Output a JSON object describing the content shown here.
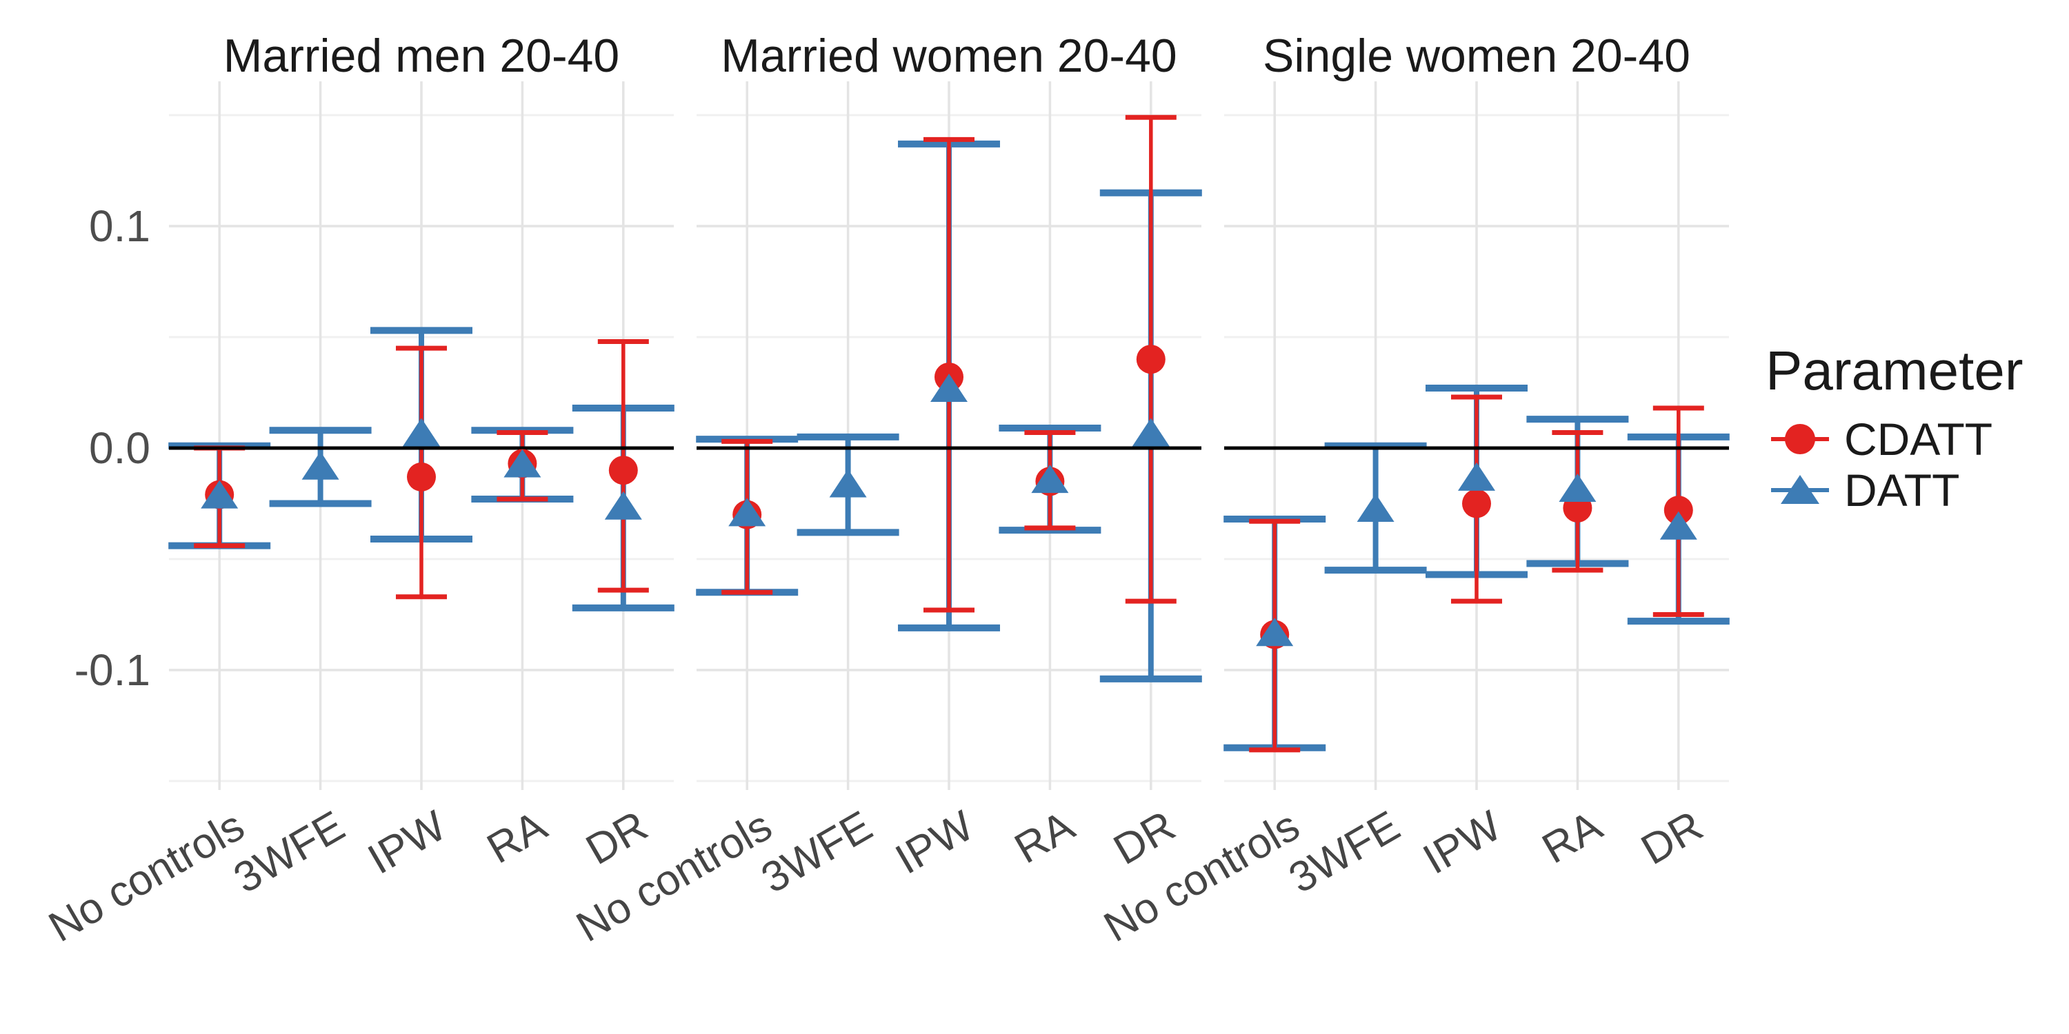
{
  "figure": {
    "background": "#ffffff"
  },
  "y_axis": {
    "ticks": [
      "0.1",
      "0.0",
      "-0.1"
    ],
    "tick_values": [
      0.1,
      0.0,
      -0.1
    ],
    "text_color": "#4d4d4d"
  },
  "legend": {
    "title": "Parameter",
    "entries": [
      {
        "label": "CDATT",
        "marker": "circle",
        "color": "#e32321"
      },
      {
        "label": "DATT",
        "marker": "triangle",
        "color": "#3d7cb5"
      }
    ]
  },
  "chart_data": {
    "type": "scatter",
    "subtype": "pointrange-errorbar-facets",
    "categories": [
      "No controls",
      "3WFE",
      "IPW",
      "RA",
      "DR"
    ],
    "ylim": [
      -0.154,
      0.165
    ],
    "gridlines": {
      "major": [
        0.1,
        0.0,
        -0.1
      ],
      "minor": [
        0.15,
        0.05,
        -0.05,
        -0.15
      ]
    },
    "zero_line": 0.0,
    "colors": {
      "cdatt": "#e32321",
      "datt": "#3d7cb5",
      "zero_line": "#000000",
      "grid_major": "#e4e4e4",
      "grid_minor": "#f0f0f0"
    },
    "facets": [
      {
        "title": "Married men 20-40",
        "CDATT": [
          {
            "est": -0.021,
            "lo": -0.044,
            "hi": 0.0
          },
          null,
          {
            "est": -0.013,
            "lo": -0.067,
            "hi": 0.045
          },
          {
            "est": -0.007,
            "lo": -0.023,
            "hi": 0.007
          },
          {
            "est": -0.01,
            "lo": -0.064,
            "hi": 0.048
          }
        ],
        "DATT": [
          {
            "est": -0.021,
            "lo": -0.044,
            "hi": 0.001
          },
          {
            "est": -0.008,
            "lo": -0.025,
            "hi": 0.008
          },
          {
            "est": 0.007,
            "lo": -0.041,
            "hi": 0.053
          },
          {
            "est": -0.007,
            "lo": -0.023,
            "hi": 0.008
          },
          {
            "est": -0.026,
            "lo": -0.072,
            "hi": 0.018
          }
        ]
      },
      {
        "title": "Married women 20-40",
        "CDATT": [
          {
            "est": -0.03,
            "lo": -0.065,
            "hi": 0.003
          },
          null,
          {
            "est": 0.032,
            "lo": -0.073,
            "hi": 0.139
          },
          {
            "est": -0.015,
            "lo": -0.036,
            "hi": 0.007
          },
          {
            "est": 0.04,
            "lo": -0.069,
            "hi": 0.149
          }
        ],
        "DATT": [
          {
            "est": -0.029,
            "lo": -0.065,
            "hi": 0.004
          },
          {
            "est": -0.016,
            "lo": -0.038,
            "hi": 0.005
          },
          {
            "est": 0.027,
            "lo": -0.081,
            "hi": 0.137
          },
          {
            "est": -0.014,
            "lo": -0.037,
            "hi": 0.009
          },
          {
            "est": 0.007,
            "lo": -0.104,
            "hi": 0.115
          }
        ]
      },
      {
        "title": "Single women 20-40",
        "CDATT": [
          {
            "est": -0.084,
            "lo": -0.136,
            "hi": -0.033
          },
          null,
          {
            "est": -0.025,
            "lo": -0.069,
            "hi": 0.023
          },
          {
            "est": -0.027,
            "lo": -0.055,
            "hi": 0.007
          },
          {
            "est": -0.028,
            "lo": -0.075,
            "hi": 0.018
          }
        ],
        "DATT": [
          {
            "est": -0.083,
            "lo": -0.135,
            "hi": -0.032
          },
          {
            "est": -0.027,
            "lo": -0.055,
            "hi": 0.001
          },
          {
            "est": -0.013,
            "lo": -0.057,
            "hi": 0.027
          },
          {
            "est": -0.018,
            "lo": -0.052,
            "hi": 0.013
          },
          {
            "est": -0.035,
            "lo": -0.078,
            "hi": 0.005
          }
        ]
      }
    ]
  }
}
